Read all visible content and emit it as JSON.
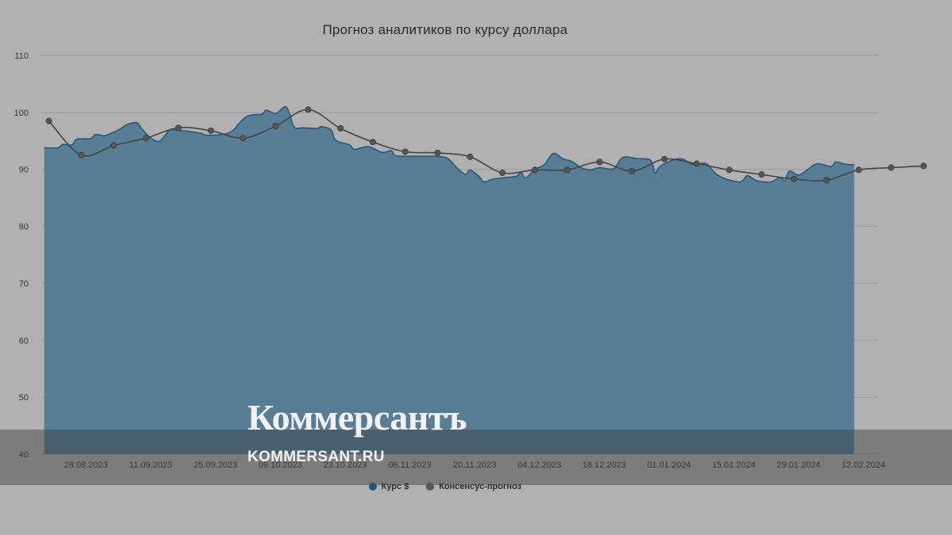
{
  "chart_data": {
    "type": "area",
    "title": "Прогноз аналитиков по курсу доллара",
    "xlabel": "",
    "ylabel": "",
    "x_range": [
      "2023-08-18",
      "2024-02-14"
    ],
    "ylim": [
      40,
      110
    ],
    "yticks": [
      40,
      50,
      60,
      70,
      80,
      90,
      100,
      110
    ],
    "xticks": [
      "28.08.2023",
      "11.09.2023",
      "25.09.2023",
      "09.10.2023",
      "23.10.2023",
      "06.11.2023",
      "20.11.2023",
      "04.12.2023",
      "18.12.2023",
      "01.01.2024",
      "15.01.2024",
      "29.01.2024",
      "12.02.2024"
    ],
    "grid": true,
    "legend_position": "bottom",
    "series": [
      {
        "name": "Курс $",
        "type": "area",
        "color": "#1f5a80",
        "points": [
          [
            "2023-08-19",
            93.8
          ],
          [
            "2023-08-22",
            93.8
          ],
          [
            "2023-08-23",
            94.4
          ],
          [
            "2023-08-25",
            94.3
          ],
          [
            "2023-08-26",
            95.3
          ],
          [
            "2023-08-29",
            95.4
          ],
          [
            "2023-08-30",
            96.1
          ],
          [
            "2023-09-01",
            95.9
          ],
          [
            "2023-09-02",
            96.2
          ],
          [
            "2023-09-04",
            96.9
          ],
          [
            "2023-09-06",
            97.9
          ],
          [
            "2023-09-08",
            98.2
          ],
          [
            "2023-09-09",
            97.2
          ],
          [
            "2023-09-11",
            95.5
          ],
          [
            "2023-09-13",
            95.0
          ],
          [
            "2023-09-15",
            96.9
          ],
          [
            "2023-09-16",
            96.9
          ],
          [
            "2023-09-19",
            96.7
          ],
          [
            "2023-09-22",
            96.3
          ],
          [
            "2023-09-23",
            96.0
          ],
          [
            "2023-09-27",
            96.2
          ],
          [
            "2023-09-29",
            97.0
          ],
          [
            "2023-09-30",
            98.0
          ],
          [
            "2023-10-02",
            99.4
          ],
          [
            "2023-10-05",
            99.7
          ],
          [
            "2023-10-06",
            100.4
          ],
          [
            "2023-10-08",
            99.8
          ],
          [
            "2023-10-10",
            101.0
          ],
          [
            "2023-10-11",
            99.8
          ],
          [
            "2023-10-12",
            97.4
          ],
          [
            "2023-10-14",
            97.3
          ],
          [
            "2023-10-17",
            97.2
          ],
          [
            "2023-10-18",
            97.5
          ],
          [
            "2023-10-20",
            96.9
          ],
          [
            "2023-10-21",
            95.1
          ],
          [
            "2023-10-24",
            94.3
          ],
          [
            "2023-10-25",
            93.5
          ],
          [
            "2023-10-28",
            94.0
          ],
          [
            "2023-10-31",
            93.0
          ],
          [
            "2023-11-02",
            93.3
          ],
          [
            "2023-11-03",
            92.4
          ],
          [
            "2023-11-07",
            92.3
          ],
          [
            "2023-11-11",
            92.3
          ],
          [
            "2023-11-14",
            92.0
          ],
          [
            "2023-11-16",
            90.4
          ],
          [
            "2023-11-18",
            89.1
          ],
          [
            "2023-11-19",
            89.9
          ],
          [
            "2023-11-21",
            88.7
          ],
          [
            "2023-11-22",
            87.8
          ],
          [
            "2023-11-24",
            88.3
          ],
          [
            "2023-11-26",
            88.5
          ],
          [
            "2023-11-29",
            88.8
          ],
          [
            "2023-11-30",
            89.5
          ],
          [
            "2023-12-01",
            88.5
          ],
          [
            "2023-12-03",
            90.0
          ],
          [
            "2023-12-05",
            90.8
          ],
          [
            "2023-12-07",
            92.8
          ],
          [
            "2023-12-09",
            91.9
          ],
          [
            "2023-12-11",
            91.4
          ],
          [
            "2023-12-13",
            90.3
          ],
          [
            "2023-12-15",
            89.9
          ],
          [
            "2023-12-17",
            90.3
          ],
          [
            "2023-12-20",
            90.1
          ],
          [
            "2023-12-22",
            92.1
          ],
          [
            "2023-12-25",
            91.9
          ],
          [
            "2023-12-28",
            91.6
          ],
          [
            "2023-12-29",
            89.4
          ],
          [
            "2023-12-30",
            90.5
          ],
          [
            "2024-01-02",
            91.7
          ],
          [
            "2024-01-04",
            91.8
          ],
          [
            "2024-01-06",
            90.9
          ],
          [
            "2024-01-09",
            91.0
          ],
          [
            "2024-01-11",
            89.3
          ],
          [
            "2024-01-13",
            88.4
          ],
          [
            "2024-01-16",
            87.8
          ],
          [
            "2024-01-17",
            88.1
          ],
          [
            "2024-01-18",
            88.9
          ],
          [
            "2024-01-20",
            88.0
          ],
          [
            "2024-01-23",
            87.8
          ],
          [
            "2024-01-25",
            88.6
          ],
          [
            "2024-01-26",
            88.0
          ],
          [
            "2024-01-27",
            89.7
          ],
          [
            "2024-01-29",
            89.0
          ],
          [
            "2024-01-31",
            90.0
          ],
          [
            "2024-02-02",
            91.0
          ],
          [
            "2024-02-05",
            90.5
          ],
          [
            "2024-02-06",
            91.3
          ],
          [
            "2024-02-08",
            90.9
          ],
          [
            "2024-02-10",
            90.8
          ]
        ]
      },
      {
        "name": "Консенсус-прогноз",
        "type": "line",
        "color": "#444444",
        "points": [
          [
            "2023-08-20",
            98.5
          ],
          [
            "2023-08-27",
            92.5
          ],
          [
            "2023-09-03",
            94.2
          ],
          [
            "2023-09-10",
            95.5
          ],
          [
            "2023-09-17",
            97.3
          ],
          [
            "2023-09-24",
            96.8
          ],
          [
            "2023-10-01",
            95.5
          ],
          [
            "2023-10-08",
            97.6
          ],
          [
            "2023-10-15",
            100.5
          ],
          [
            "2023-10-22",
            97.2
          ],
          [
            "2023-10-29",
            94.8
          ],
          [
            "2023-11-05",
            93.1
          ],
          [
            "2023-11-12",
            92.9
          ],
          [
            "2023-11-19",
            92.2
          ],
          [
            "2023-11-26",
            89.4
          ],
          [
            "2023-12-03",
            89.9
          ],
          [
            "2023-12-10",
            89.9
          ],
          [
            "2023-12-17",
            91.3
          ],
          [
            "2023-12-24",
            89.7
          ],
          [
            "2023-12-31",
            91.8
          ],
          [
            "2024-01-07",
            91.0
          ],
          [
            "2024-01-14",
            89.9
          ],
          [
            "2024-01-21",
            89.1
          ],
          [
            "2024-01-28",
            88.3
          ],
          [
            "2024-02-04",
            88.1
          ],
          [
            "2024-02-11",
            89.9
          ],
          [
            "2024-02-18",
            90.3
          ],
          [
            "2024-02-25",
            90.6
          ]
        ]
      }
    ]
  },
  "watermark": {
    "logo": "Коммерсантъ",
    "url": "KOMMERSANT.RU"
  }
}
